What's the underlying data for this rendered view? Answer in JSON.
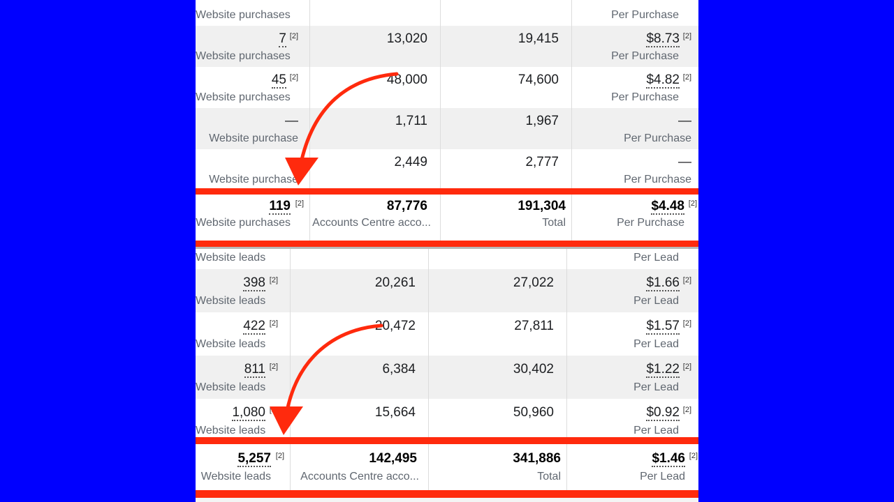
{
  "colors": {
    "background": "#0000ff",
    "highlight": "#ff2a0d",
    "row_shade": "#f0f0f0"
  },
  "section1": {
    "top_partial": {
      "c1_sub": "Website purchases",
      "c4_sub": "Per Purchase"
    },
    "rows": [
      {
        "c1": "7",
        "c1_sub": "Website purchases",
        "c2": "13,020",
        "c3": "19,415",
        "c4": "$8.73",
        "c4_sub": "Per Purchase"
      },
      {
        "c1": "45",
        "c1_sub": "Website purchases",
        "c2": "48,000",
        "c3": "74,600",
        "c4": "$4.82",
        "c4_sub": "Per Purchase"
      },
      {
        "c1": "—",
        "c1_sub": "Website purchase",
        "c2": "1,711",
        "c3": "1,967",
        "c4": "—",
        "c4_sub": "Per Purchase"
      },
      {
        "c1": "",
        "c1_sub": "Website purchase",
        "c2": "2,449",
        "c3": "2,777",
        "c4": "—",
        "c4_sub": "Per Purchase"
      }
    ],
    "total": {
      "c1": "119",
      "c1_sub": "Website purchases",
      "c2": "87,776",
      "c2_sub": "Accounts Centre acco...",
      "c3": "191,304",
      "c3_sub": "Total",
      "c4": "$4.48",
      "c4_sub": "Per Purchase"
    }
  },
  "section2": {
    "top_partial": {
      "c1_sub": "Website leads",
      "c4_sub": "Per Lead"
    },
    "rows": [
      {
        "c1": "398",
        "c1_sub": "Website leads",
        "c2": "20,261",
        "c3": "27,022",
        "c4": "$1.66",
        "c4_sub": "Per Lead"
      },
      {
        "c1": "422",
        "c1_sub": "Website leads",
        "c2": "20,472",
        "c3": "27,811",
        "c4": "$1.57",
        "c4_sub": "Per Lead"
      },
      {
        "c1": "811",
        "c1_sub": "Website leads",
        "c2": "6,384",
        "c3": "30,402",
        "c4": "$1.22",
        "c4_sub": "Per Lead"
      },
      {
        "c1": "1,080",
        "c1_sub": "Website leads",
        "c2": "15,664",
        "c3": "50,960",
        "c4": "$0.92",
        "c4_sub": "Per Lead"
      }
    ],
    "total": {
      "c1": "5,257",
      "c1_sub": "Website leads",
      "c2": "142,495",
      "c2_sub": "Accounts Centre acco...",
      "c3": "341,886",
      "c3_sub": "Total",
      "c4": "$1.46",
      "c4_sub": "Per Lead"
    }
  },
  "ref_marker": "[2]"
}
